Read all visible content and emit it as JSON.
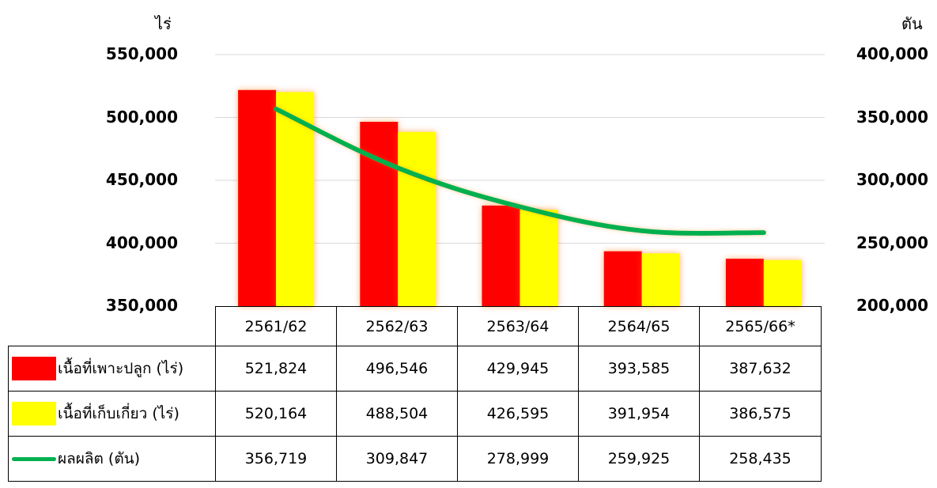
{
  "chart_data": {
    "type": "bar",
    "title": "",
    "xlabel": "",
    "ylabel_left": "ไร่",
    "ylabel_right": "ตัน",
    "categories": [
      "2561/62",
      "2562/63",
      "2563/64",
      "2564/65",
      "2565/66*"
    ],
    "ylim_left": [
      350000,
      550000
    ],
    "ylim_right": [
      200000,
      400000
    ],
    "yticks_left": [
      "550,000",
      "500,000",
      "450,000",
      "400,000",
      "350,000"
    ],
    "yticks_right": [
      "400,000",
      "350,000",
      "300,000",
      "250,000",
      "200,000"
    ],
    "grid": true,
    "legend_placement": "data-table",
    "series": [
      {
        "name": "เนื้อที่เพาะปลูก (ไร่)",
        "type": "bar",
        "axis": "left",
        "color": "#ff0000",
        "values": [
          521824,
          496546,
          429945,
          393585,
          387632
        ],
        "labels": [
          "521,824",
          "496,546",
          "429,945",
          "393,585",
          "387,632"
        ]
      },
      {
        "name": "เนื้อที่เก็บเกี่ยว (ไร่)",
        "type": "bar",
        "axis": "left",
        "color": "#ffff00",
        "values": [
          520164,
          488504,
          426595,
          391954,
          386575
        ],
        "labels": [
          "520,164",
          "488,504",
          "426,595",
          "391,954",
          "386,575"
        ]
      },
      {
        "name": "ผลผลิต (ตัน)",
        "type": "line",
        "axis": "right",
        "color": "#00b050",
        "values": [
          356719,
          309847,
          278999,
          259925,
          258435
        ],
        "labels": [
          "356,719",
          "309,847",
          "278,999",
          "259,925",
          "258,435"
        ]
      }
    ]
  }
}
